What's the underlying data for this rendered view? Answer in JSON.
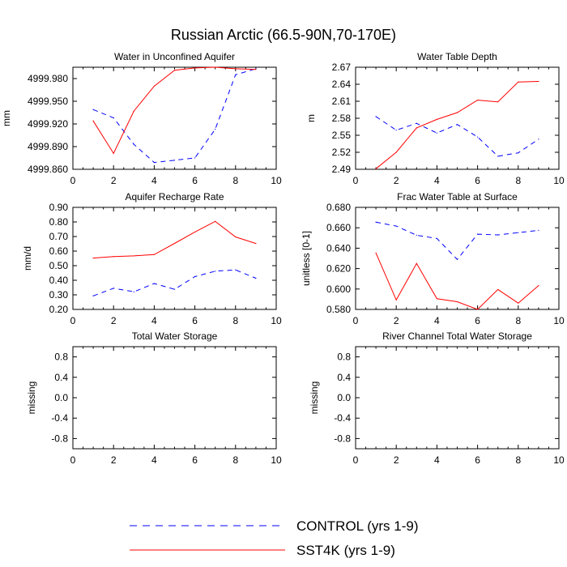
{
  "title": "Russian Arctic (66.5-90N,70-170E)",
  "colors": {
    "control": "#0000ff",
    "sst4k": "#ff0000",
    "axis": "#000000"
  },
  "legend": {
    "items": [
      {
        "label": "CONTROL (yrs 1-9)",
        "style": "dashed",
        "color": "#0000ff"
      },
      {
        "label": "SST4K (yrs 1-9)",
        "style": "solid",
        "color": "#ff0000"
      }
    ]
  },
  "chart_data": [
    {
      "type": "line",
      "title": "Water in Unconfined Aquifer",
      "ylabel": "mm",
      "xlim": [
        0,
        10
      ],
      "ylim": [
        4999.86,
        4999.995
      ],
      "xticks": [
        0,
        2,
        4,
        6,
        8,
        10
      ],
      "yticks": [
        4999.86,
        4999.89,
        4999.92,
        4999.95,
        4999.98
      ],
      "ytick_labels": [
        "4999.860",
        "4999.890",
        "4999.920",
        "4999.950",
        "4999.980"
      ],
      "x": [
        1,
        2,
        3,
        4,
        5,
        6,
        7,
        8,
        9
      ],
      "series": [
        {
          "name": "CONTROL (yrs 1-9)",
          "values": [
            4999.939,
            4999.928,
            4999.893,
            4999.869,
            4999.872,
            4999.875,
            4999.913,
            4999.985,
            4999.993
          ]
        },
        {
          "name": "SST4K (yrs 1-9)",
          "values": [
            4999.924,
            4999.881,
            4999.937,
            4999.97,
            4999.991,
            4999.994,
            4999.995,
            4999.993,
            4999.992
          ]
        }
      ]
    },
    {
      "type": "line",
      "title": "Water Table Depth",
      "ylabel": "m",
      "xlim": [
        0,
        10
      ],
      "ylim": [
        2.49,
        2.67
      ],
      "xticks": [
        0,
        2,
        4,
        6,
        8,
        10
      ],
      "yticks": [
        2.49,
        2.52,
        2.55,
        2.58,
        2.61,
        2.64,
        2.67
      ],
      "ytick_labels": [
        "2.49",
        "2.52",
        "2.55",
        "2.58",
        "2.61",
        "2.64",
        "2.67"
      ],
      "x": [
        1,
        2,
        3,
        4,
        5,
        6,
        7,
        8,
        9
      ],
      "series": [
        {
          "name": "CONTROL (yrs 1-9)",
          "values": [
            2.583,
            2.559,
            2.571,
            2.554,
            2.569,
            2.547,
            2.513,
            2.519,
            2.543
          ]
        },
        {
          "name": "SST4K (yrs 1-9)",
          "values": [
            2.491,
            2.52,
            2.563,
            2.578,
            2.59,
            2.612,
            2.609,
            2.644,
            2.645
          ]
        }
      ]
    },
    {
      "type": "line",
      "title": "Aquifer Recharge Rate",
      "ylabel": "mm/d",
      "xlim": [
        0,
        10
      ],
      "ylim": [
        0.2,
        0.9
      ],
      "xticks": [
        0,
        2,
        4,
        6,
        8,
        10
      ],
      "yticks": [
        0.2,
        0.3,
        0.4,
        0.5,
        0.6,
        0.7,
        0.8,
        0.9
      ],
      "ytick_labels": [
        "0.20",
        "0.30",
        "0.40",
        "0.50",
        "0.60",
        "0.70",
        "0.80",
        "0.90"
      ],
      "x": [
        1,
        2,
        3,
        4,
        5,
        6,
        7,
        8,
        9
      ],
      "series": [
        {
          "name": "CONTROL (yrs 1-9)",
          "values": [
            0.293,
            0.345,
            0.321,
            0.378,
            0.338,
            0.425,
            0.462,
            0.471,
            0.414
          ]
        },
        {
          "name": "SST4K (yrs 1-9)",
          "values": [
            0.552,
            0.562,
            0.567,
            0.576,
            0.653,
            0.731,
            0.804,
            0.697,
            0.652
          ]
        }
      ]
    },
    {
      "type": "line",
      "title": "Frac Water Table at Surface",
      "ylabel": "unitless [0-1]",
      "xlim": [
        0,
        10
      ],
      "ylim": [
        0.58,
        0.68
      ],
      "xticks": [
        0,
        2,
        4,
        6,
        8,
        10
      ],
      "yticks": [
        0.58,
        0.6,
        0.62,
        0.64,
        0.66,
        0.68
      ],
      "ytick_labels": [
        "0.580",
        "0.600",
        "0.620",
        "0.640",
        "0.660",
        "0.680"
      ],
      "x": [
        1,
        2,
        3,
        4,
        5,
        6,
        7,
        8,
        9
      ],
      "series": [
        {
          "name": "CONTROL (yrs 1-9)",
          "values": [
            0.6655,
            0.6617,
            0.6527,
            0.6495,
            0.629,
            0.6537,
            0.653,
            0.6552,
            0.6575
          ]
        },
        {
          "name": "SST4K (yrs 1-9)",
          "values": [
            0.6353,
            0.5893,
            0.625,
            0.5905,
            0.5875,
            0.58,
            0.5995,
            0.5862,
            0.6033
          ]
        }
      ]
    },
    {
      "type": "line",
      "title": "Total Water Storage",
      "ylabel": "missing",
      "xlim": [
        0,
        10
      ],
      "ylim": [
        -1,
        1
      ],
      "xticks": [
        0,
        2,
        4,
        6,
        8,
        10
      ],
      "yticks": [
        -0.8,
        -0.4,
        0.0,
        0.4,
        0.8
      ],
      "ytick_labels": [
        "-0.8",
        "-0.4",
        "0.0",
        "0.4",
        "0.8"
      ],
      "x": [],
      "series": []
    },
    {
      "type": "line",
      "title": "River Channel Total Water Storage",
      "ylabel": "missing",
      "xlim": [
        0,
        10
      ],
      "ylim": [
        -1,
        1
      ],
      "xticks": [
        0,
        2,
        4,
        6,
        8,
        10
      ],
      "yticks": [
        -0.8,
        -0.4,
        0.0,
        0.4,
        0.8
      ],
      "ytick_labels": [
        "-0.8",
        "-0.4",
        "0.0",
        "0.4",
        "0.8"
      ],
      "x": [],
      "series": []
    }
  ]
}
